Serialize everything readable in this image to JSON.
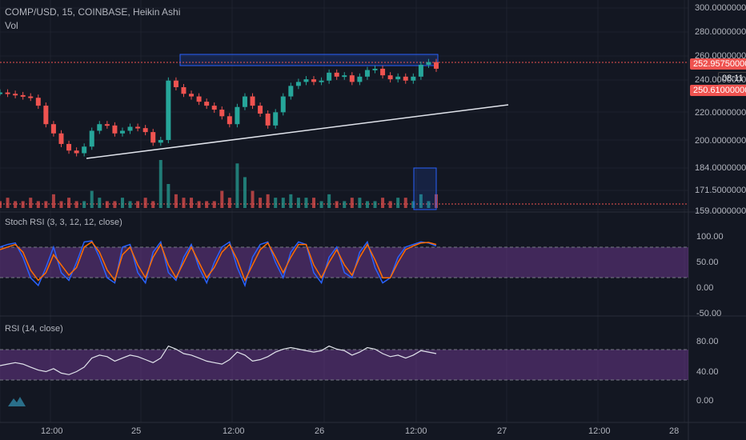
{
  "header": {
    "symbol_line": "COMP/USD, 15, COINBASE, Heikin Ashi",
    "volume_label": "Vol"
  },
  "price_panel": {
    "current_price": "252.95750000",
    "countdown": "08:11",
    "low_marker": "250.61000000",
    "up_color": "#26a69a",
    "down_color": "#ef5350",
    "ticks": [
      "300.00000000",
      "280.00000000",
      "260.00000000",
      "240.00000000",
      "220.00000000",
      "200.00000000",
      "184.00000000",
      "171.50000000",
      "159.00000000"
    ]
  },
  "stoch_panel": {
    "title": "Stoch RSI (3, 3, 12, 12, close)",
    "ticks": [
      "100.00",
      "50.00",
      "0.00",
      "-50.00"
    ],
    "band_color": "#7b3fa0"
  },
  "rsi_panel": {
    "title": "RSI (14, close)",
    "ticks": [
      "80.00",
      "40.00",
      "0.00"
    ]
  },
  "time_axis": [
    "12:00",
    "25",
    "12:00",
    "26",
    "12:00",
    "27",
    "12:00",
    "28"
  ],
  "chart_data": {
    "type": "line",
    "title": "COMP/USD, 15, COINBASE, Heikin Ashi",
    "price_series": {
      "name": "COMP/USD",
      "x_ticks": [
        "12:00",
        "25",
        "12:00",
        "26",
        "12:00",
        "27",
        "12:00",
        "28"
      ],
      "y_range": [
        188,
        300
      ],
      "values": [
        236,
        235,
        234,
        233,
        232,
        226,
        212,
        205,
        197,
        192,
        190,
        195,
        207,
        212,
        211,
        205,
        207,
        210,
        209,
        206,
        198,
        200,
        245,
        240,
        235,
        233,
        229,
        226,
        223,
        218,
        212,
        225,
        233,
        226,
        220,
        211,
        221,
        233,
        241,
        244,
        246,
        244,
        245,
        251,
        248,
        249,
        244,
        248,
        253,
        254,
        249,
        246,
        248,
        245,
        248,
        257,
        259,
        254
      ]
    },
    "volume_series": {
      "name": "Vol",
      "values": [
        2,
        3,
        2,
        2,
        3,
        2,
        2,
        4,
        2,
        3,
        2,
        2,
        5,
        3,
        2,
        2,
        3,
        2,
        2,
        3,
        2,
        14,
        7,
        4,
        3,
        3,
        2,
        2,
        2,
        5,
        3,
        13,
        9,
        5,
        3,
        4,
        3,
        3,
        4,
        3,
        3,
        3,
        2,
        4,
        2,
        2,
        3,
        3,
        2,
        2,
        3,
        2,
        3,
        3,
        2,
        4,
        2,
        4
      ]
    },
    "stoch_series": [
      {
        "name": "K",
        "values": [
          80,
          85,
          88,
          60,
          20,
          5,
          40,
          80,
          30,
          15,
          50,
          90,
          92,
          60,
          20,
          10,
          80,
          85,
          30,
          10,
          70,
          90,
          30,
          15,
          60,
          85,
          40,
          10,
          50,
          80,
          90,
          40,
          5,
          60,
          85,
          90,
          50,
          20,
          70,
          90,
          85,
          30,
          10,
          60,
          80,
          30,
          20,
          70,
          90,
          40,
          10,
          20,
          60,
          80,
          85,
          90,
          88,
          82
        ]
      },
      {
        "name": "D",
        "values": [
          75,
          80,
          85,
          70,
          35,
          15,
          30,
          65,
          45,
          25,
          40,
          80,
          90,
          70,
          35,
          15,
          65,
          80,
          45,
          20,
          60,
          85,
          45,
          20,
          50,
          80,
          50,
          20,
          40,
          70,
          85,
          55,
          15,
          45,
          75,
          88,
          60,
          30,
          60,
          85,
          85,
          45,
          20,
          50,
          75,
          45,
          25,
          60,
          85,
          55,
          20,
          20,
          50,
          75,
          82,
          88,
          89,
          85
        ]
      }
    ],
    "rsi_series": {
      "name": "RSI",
      "values": [
        48,
        50,
        52,
        50,
        46,
        42,
        40,
        44,
        38,
        36,
        40,
        46,
        58,
        62,
        60,
        54,
        58,
        62,
        60,
        56,
        52,
        58,
        74,
        70,
        64,
        62,
        58,
        54,
        52,
        50,
        56,
        66,
        62,
        54,
        56,
        60,
        66,
        70,
        72,
        70,
        68,
        66,
        68,
        74,
        70,
        68,
        62,
        66,
        72,
        70,
        64,
        60,
        62,
        58,
        62,
        68,
        66,
        64
      ]
    }
  }
}
